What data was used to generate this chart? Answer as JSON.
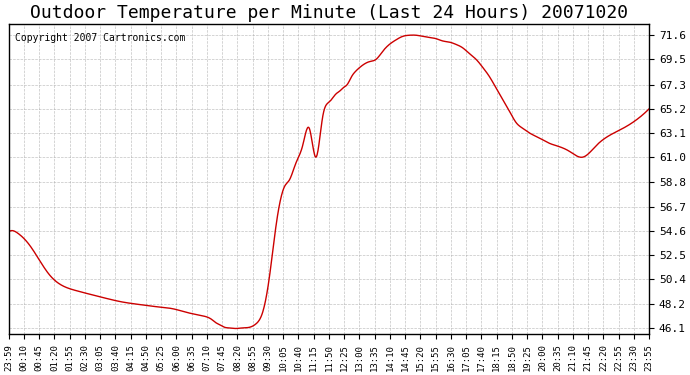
{
  "title": "Outdoor Temperature per Minute (Last 24 Hours) 20071020",
  "copyright_text": "Copyright 2007 Cartronics.com",
  "line_color": "#cc0000",
  "background_color": "#ffffff",
  "plot_bg_color": "#ffffff",
  "grid_color": "#aaaaaa",
  "title_fontsize": 13,
  "yticks": [
    46.1,
    48.2,
    50.4,
    52.5,
    54.6,
    56.7,
    58.8,
    61.0,
    63.1,
    65.2,
    67.3,
    69.5,
    71.6
  ],
  "ylim": [
    45.6,
    72.6
  ],
  "xtick_labels": [
    "23:59",
    "00:10",
    "00:45",
    "01:20",
    "01:55",
    "02:30",
    "03:05",
    "03:40",
    "04:15",
    "04:50",
    "05:25",
    "06:00",
    "06:35",
    "07:10",
    "07:45",
    "08:20",
    "08:55",
    "09:30",
    "10:05",
    "10:40",
    "11:15",
    "11:50",
    "12:25",
    "13:00",
    "13:35",
    "14:10",
    "14:45",
    "15:20",
    "15:55",
    "16:30",
    "17:05",
    "17:40",
    "18:15",
    "18:50",
    "19:25",
    "20:00",
    "20:35",
    "21:10",
    "21:45",
    "22:20",
    "22:55",
    "23:30",
    "23:55"
  ],
  "key_points": {
    "x_indices": [
      0,
      4,
      8,
      15,
      22,
      30,
      35,
      42
    ],
    "y_values": [
      54.5,
      53.8,
      48.2,
      46.1,
      58.8,
      71.6,
      63.1,
      65.2
    ]
  }
}
